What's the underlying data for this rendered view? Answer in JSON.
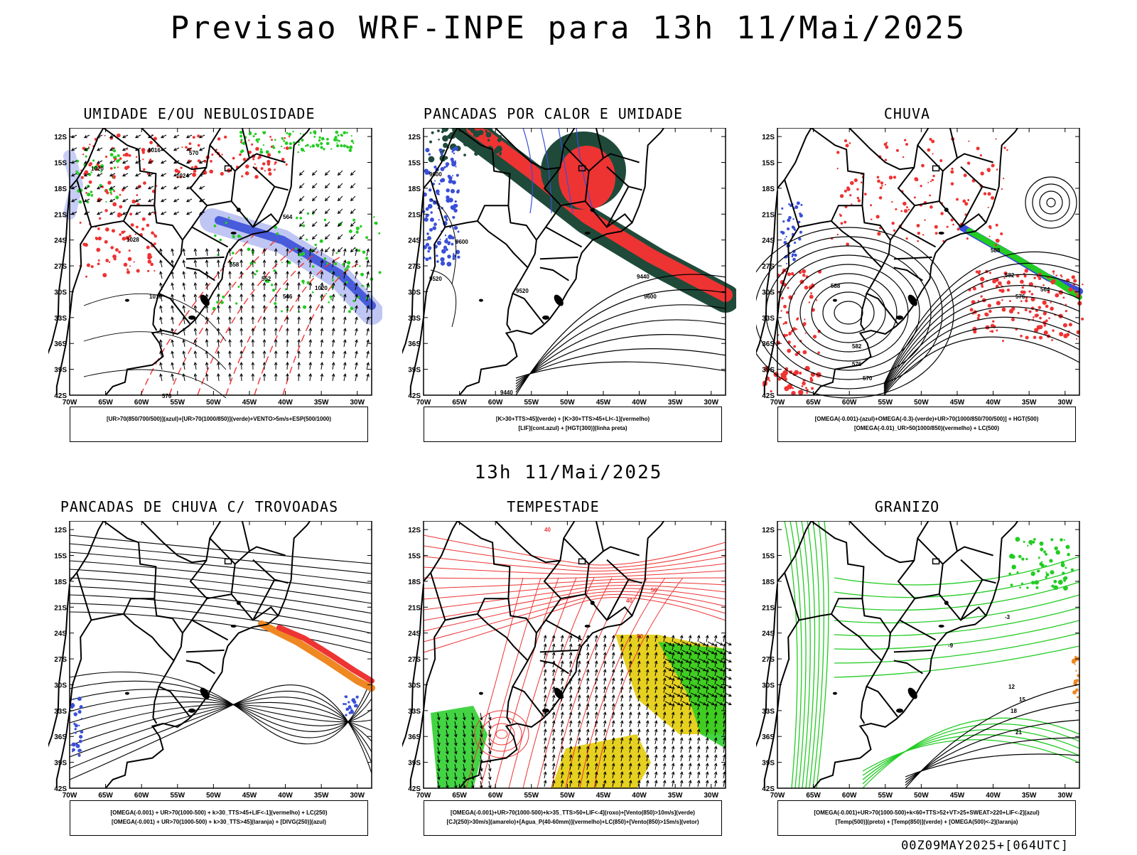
{
  "header": {
    "title": "Previsao WRF-INPE  para 13h 11/Mai/2025",
    "subtitle": "13h 11/Mai/2025",
    "footer": "00Z09MAY2025+[064UTC]"
  },
  "axes": {
    "y_labels": [
      "12S",
      "15S",
      "18S",
      "21S",
      "24S",
      "27S",
      "30S",
      "33S",
      "36S",
      "39S",
      "42S"
    ],
    "x_labels": [
      "70W",
      "65W",
      "60W",
      "55W",
      "50W",
      "45W",
      "40W",
      "35W",
      "30W"
    ]
  },
  "colors": {
    "blue": "#3a4fd8",
    "lightblue": "#9aa6ee",
    "green": "#22cc22",
    "red": "#ee3333",
    "darkgreen": "#1f4a3a",
    "orange": "#ee8822",
    "yellow": "#e6d020",
    "purple": "#7a2aa0"
  },
  "panels": [
    {
      "id": "umidade",
      "title": "UMIDADE E/OU NEBULOSIDADE",
      "legend": [
        "[UR>70(850/700/500)](azul)+[UR>70(1000/850)](verde)+VENTO>5m/s+ESP(500/1000)"
      ],
      "contour_labels": [
        "1016",
        "1020",
        "1024",
        "1028",
        "1016",
        "576",
        "570",
        "564",
        "558",
        "552",
        "546",
        "1020"
      ]
    },
    {
      "id": "pancadas-calor",
      "title": "PANCADAS POR CALOR E UMIDADE",
      "legend": [
        "[K>30+TTS>45](verde) + [K>30+TTS>45+LI<-1](vermelho)",
        "[LIF](cont.azul) + [HGT(300)](linha preta)"
      ],
      "contour_labels": [
        "9600",
        "9600",
        "9520",
        "9440",
        "9600",
        "9520",
        "9440"
      ]
    },
    {
      "id": "chuva",
      "title": "CHUVA",
      "legend": [
        "[OMEGA(-0.001)-(azul)+OMEGA(-0.3)-(verde)+UR>70(1000/850/700/500)] + HGT(500)",
        "[OMEGA(-0.01)_UR>50(1000/850)(vermelho) + LC(500)"
      ],
      "contour_labels": [
        "588",
        "582",
        "576",
        "570",
        "564",
        "588",
        "582",
        "576"
      ]
    },
    {
      "id": "pancadas-trovoadas",
      "title": "PANCADAS DE CHUVA C/ TROVOADAS",
      "legend": [
        "[OMEGA(-0.001) + UR>70(1000-500) + k>30_TTS>45+LIF<-1](vermelho) + LC(250)",
        "[OMEGA(-0.001) + UR>70(1000-500) + k>30_TTS>45](laranja) + [DIVG(250)](azul)"
      ],
      "contour_labels": []
    },
    {
      "id": "tempestade",
      "title": "TEMPESTADE",
      "legend": [
        "[OMEGA(-0.001)+UR>70(1000-500)+k>35_TTS>50+LIF<-4](roxo)+[Vento(850)>10m/s](verde)",
        "[CJ(250)>30m/s](amarelo)+[Agua_P(40-60mm)](vermelho)+LC(850)+[Vento(850)>15m/s](vetor)"
      ],
      "contour_labels": [
        "40",
        "50",
        "40",
        "50"
      ]
    },
    {
      "id": "granizo",
      "title": "GRANIZO",
      "legend": [
        "[OMEGA(-0.001)+UR>70(1000-500)+k<60+TTS>52+VT>25+SWEAT>220+LIF<-2](azul)",
        "[Temp(500)](preto) + [Temp(850)](verde) + [OMEGA(500)<-2](laranja)"
      ],
      "contour_labels": [
        "12",
        "15",
        "18",
        "21",
        "-9",
        "-3"
      ]
    }
  ]
}
